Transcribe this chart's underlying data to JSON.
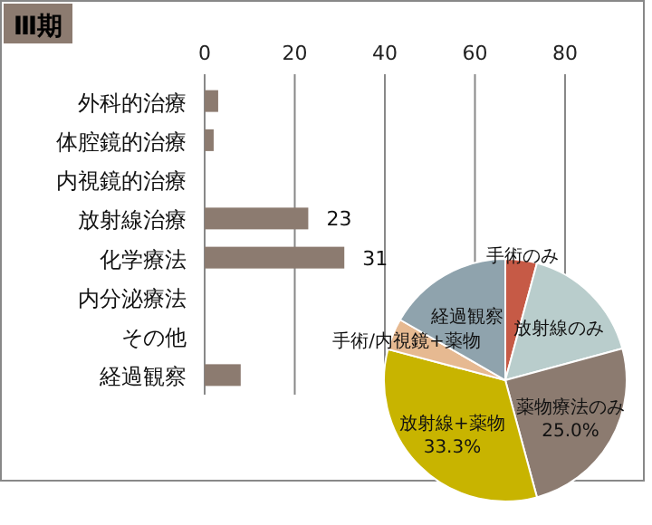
{
  "chart_data": [
    {
      "type": "bar",
      "orientation": "horizontal",
      "title": "Ⅲ期",
      "categories": [
        "外科的治療",
        "体腔鏡的治療",
        "内視鏡的治療",
        "放射線治療",
        "化学療法",
        "内分泌療法",
        "その他",
        "経過観察"
      ],
      "values": [
        3,
        2,
        0,
        23,
        31,
        0,
        0,
        8
      ],
      "value_labels": [
        null,
        null,
        null,
        "23",
        "31",
        null,
        null,
        null
      ],
      "color": "#8c7b70",
      "xlim": [
        0,
        80
      ],
      "xticks": [
        0,
        20,
        40,
        60,
        80
      ],
      "grid": "x"
    },
    {
      "type": "pie",
      "categories": [
        "手術のみ",
        "放射線のみ",
        "薬物療法のみ",
        "放射線+薬物",
        "手術/内視鏡+薬物",
        "経過観察"
      ],
      "values": [
        4.2,
        16.6,
        25.0,
        33.3,
        4.2,
        16.7
      ],
      "value_labels": [
        null,
        null,
        "25.0%",
        "33.3%",
        null,
        null
      ],
      "colors": [
        "#c65a46",
        "#b9cdcc",
        "#8c7b70",
        "#c8b400",
        "#e6b991",
        "#8fa3ad"
      ]
    }
  ]
}
